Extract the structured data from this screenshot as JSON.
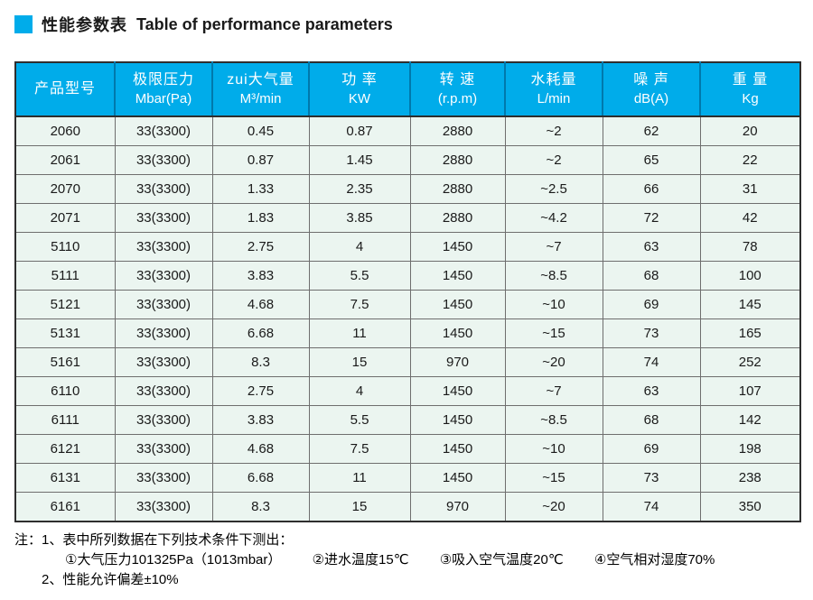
{
  "title": {
    "zh": "性能参数表",
    "en": "Table of performance parameters"
  },
  "colors": {
    "accent_cyan": "#00ACEA",
    "header_divider_blue": "#0079AC",
    "row_background": "#EBF5F0",
    "grid_border": "#6E6E6E",
    "outer_border": "#2E2E2E",
    "header_text": "#FFFFFF"
  },
  "table": {
    "columns": [
      {
        "zh": "产品型号",
        "unit": ""
      },
      {
        "zh": "极限压力",
        "unit": "Mbar(Pa)"
      },
      {
        "zh": "zui大气量",
        "unit": "M³/min"
      },
      {
        "zh": "功 率",
        "unit": "KW"
      },
      {
        "zh": "转 速",
        "unit": "(r.p.m)"
      },
      {
        "zh": "水耗量",
        "unit": "L/min"
      },
      {
        "zh": "噪 声",
        "unit": "dB(A)"
      },
      {
        "zh": "重 量",
        "unit": "Kg"
      }
    ],
    "rows": [
      [
        "2060",
        "33(3300)",
        "0.45",
        "0.87",
        "2880",
        "~2",
        "62",
        "20"
      ],
      [
        "2061",
        "33(3300)",
        "0.87",
        "1.45",
        "2880",
        "~2",
        "65",
        "22"
      ],
      [
        "2070",
        "33(3300)",
        "1.33",
        "2.35",
        "2880",
        "~2.5",
        "66",
        "31"
      ],
      [
        "2071",
        "33(3300)",
        "1.83",
        "3.85",
        "2880",
        "~4.2",
        "72",
        "42"
      ],
      [
        "5110",
        "33(3300)",
        "2.75",
        "4",
        "1450",
        "~7",
        "63",
        "78"
      ],
      [
        "5111",
        "33(3300)",
        "3.83",
        "5.5",
        "1450",
        "~8.5",
        "68",
        "100"
      ],
      [
        "5121",
        "33(3300)",
        "4.68",
        "7.5",
        "1450",
        "~10",
        "69",
        "145"
      ],
      [
        "5131",
        "33(3300)",
        "6.68",
        "11",
        "1450",
        "~15",
        "73",
        "165"
      ],
      [
        "5161",
        "33(3300)",
        "8.3",
        "15",
        "970",
        "~20",
        "74",
        "252"
      ],
      [
        "6110",
        "33(3300)",
        "2.75",
        "4",
        "1450",
        "~7",
        "63",
        "107"
      ],
      [
        "6111",
        "33(3300)",
        "3.83",
        "5.5",
        "1450",
        "~8.5",
        "68",
        "142"
      ],
      [
        "6121",
        "33(3300)",
        "4.68",
        "7.5",
        "1450",
        "~10",
        "69",
        "198"
      ],
      [
        "6131",
        "33(3300)",
        "6.68",
        "11",
        "1450",
        "~15",
        "73",
        "238"
      ],
      [
        "6161",
        "33(3300)",
        "8.3",
        "15",
        "970",
        "~20",
        "74",
        "350"
      ]
    ]
  },
  "notes": {
    "prefix": "注：",
    "line1": "1、表中所列数据在下列技术条件下测出：",
    "conditions": [
      "①大气压力101325Pa（1013mbar）",
      "②进水温度15℃",
      "③吸入空气温度20℃",
      "④空气相对湿度70%"
    ],
    "line3": "2、性能允许偏差±10%"
  }
}
